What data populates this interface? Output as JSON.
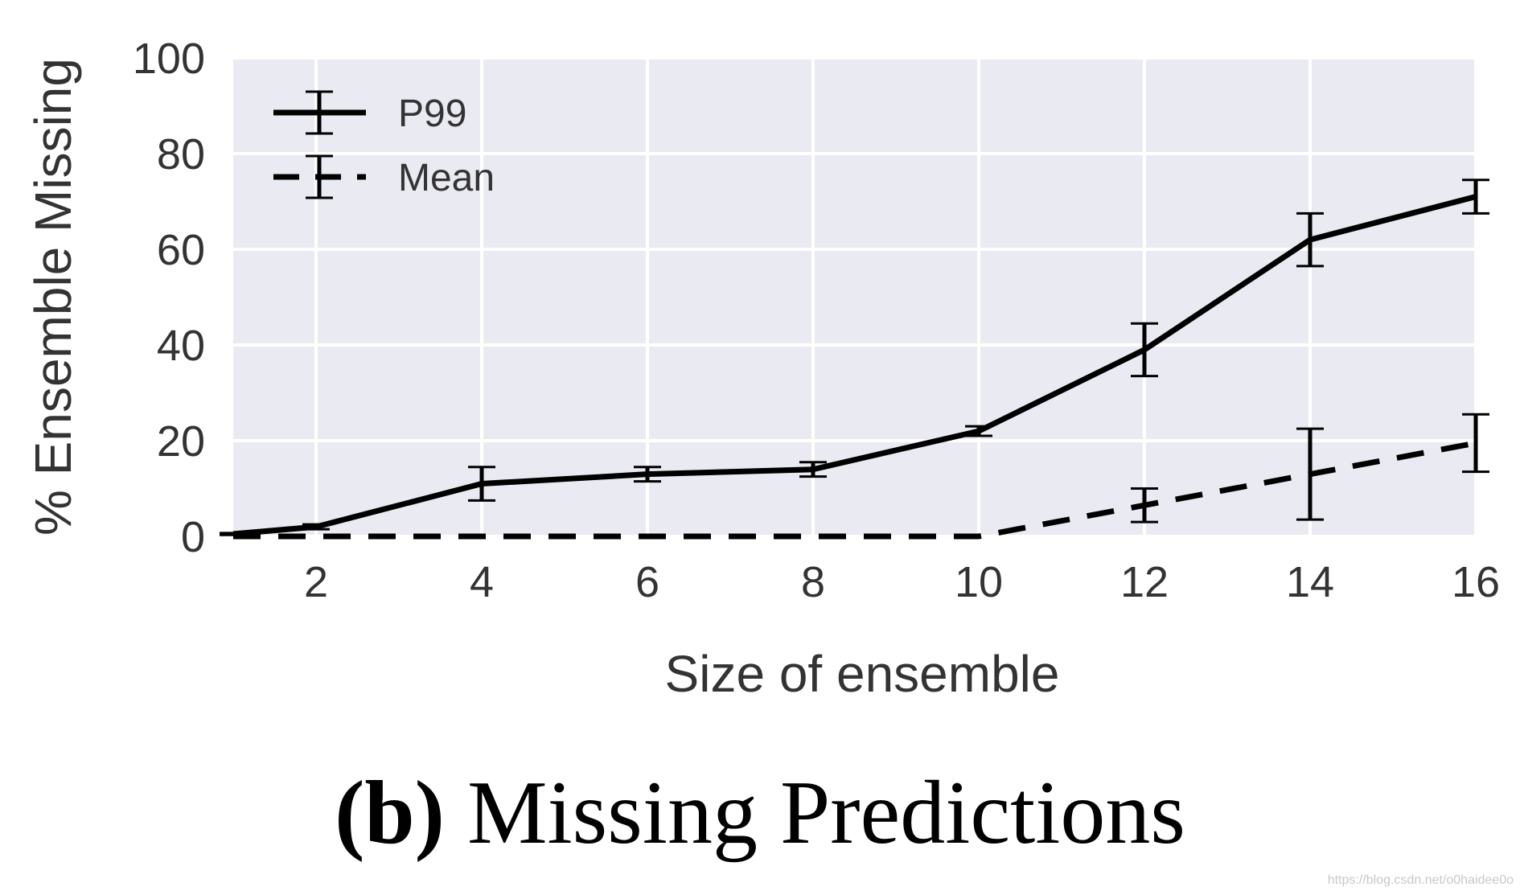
{
  "chart_data": {
    "type": "line",
    "xlabel": "Size of ensemble",
    "ylabel": "% Ensemble Missing",
    "xlim": [
      1,
      16
    ],
    "ylim": [
      0,
      100
    ],
    "xticks": [
      "2",
      "4",
      "6",
      "8",
      "10",
      "12",
      "14",
      "16"
    ],
    "yticks": [
      "0",
      "20",
      "40",
      "60",
      "80",
      "100"
    ],
    "grid": true,
    "legend_position": "top-left",
    "series": [
      {
        "name": "P99",
        "style": "solid",
        "x": [
          1,
          2,
          4,
          6,
          8,
          10,
          12,
          14,
          16
        ],
        "y": [
          0.5,
          2,
          11,
          13,
          14,
          22,
          39,
          62,
          71
        ],
        "err": [
          0.2,
          0.5,
          3.5,
          1.5,
          1.5,
          1,
          5.5,
          5.5,
          3.5
        ]
      },
      {
        "name": "Mean",
        "style": "dashed",
        "x": [
          1,
          2,
          4,
          6,
          8,
          10,
          12,
          14,
          16
        ],
        "y": [
          0,
          0,
          0,
          0,
          0,
          0,
          6.5,
          13,
          19.5
        ],
        "err": [
          0,
          0,
          0,
          0,
          0,
          0,
          3.5,
          9.5,
          6
        ]
      }
    ],
    "colors": {
      "background": "#eaeaf2",
      "grid": "#ffffff",
      "line": "#000000",
      "text": "#333333"
    }
  },
  "caption": {
    "label": "(b)",
    "text": " Missing Predictions"
  },
  "watermark": "https://blog.csdn.net/o0haidee0o"
}
